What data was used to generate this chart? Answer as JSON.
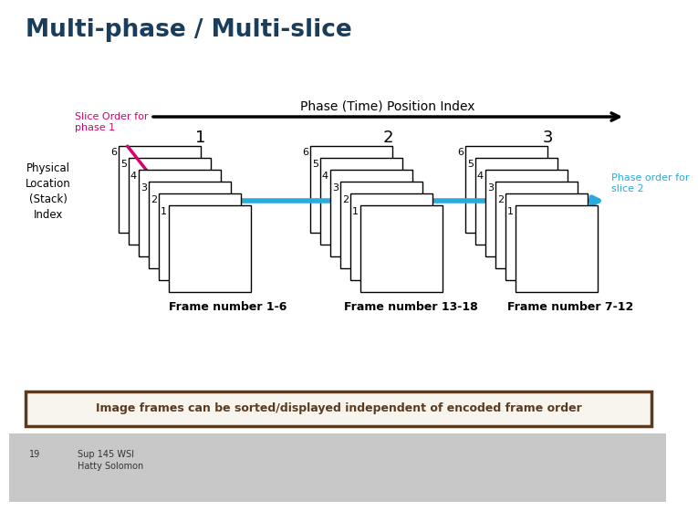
{
  "title": "Multi-phase / Multi-slice",
  "title_color": "#1a3d5c",
  "bg_color": "#ffffff",
  "slide_footer_bg": "#c8c8c8",
  "arrow_label": "Phase (Time) Position Index",
  "phase_labels": [
    "1",
    "2",
    "3"
  ],
  "frame_labels": [
    "Frame number 1-6",
    "Frame number 13-18",
    "Frame number 7-12"
  ],
  "stack_label": "Physical\nLocation\n(Stack)\nIndex",
  "slice_order_label": "Slice Order for\nphase 1",
  "phase_order_label": "Phase order for\nslice 2",
  "bottom_text": "Image frames can be sorted/displayed independent of encoded frame order",
  "footer_line1": "19",
  "footer_line2": "Sup 145 WSI",
  "footer_line3": "Hatty Solomon",
  "stack_numbers": [
    "6",
    "5",
    "4",
    "3",
    "2",
    "1"
  ],
  "pink_color": "#d4006e",
  "cyan_color": "#29abde",
  "bottom_box_border": "#5c3a1e",
  "bottom_box_fill": "#f8f4ee"
}
